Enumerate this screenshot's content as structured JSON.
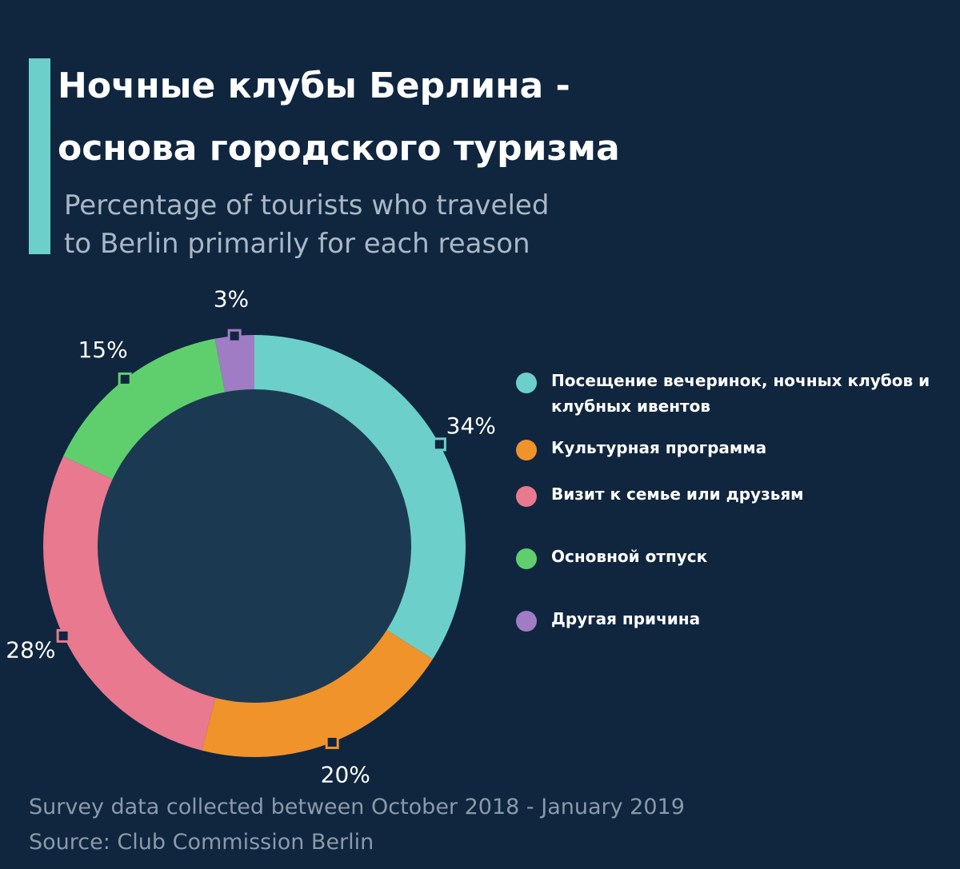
{
  "chart_data": {
    "type": "pie",
    "donut": true,
    "title": [
      "Ночные клубы Берлина -",
      "основа городского туризма"
    ],
    "subtitle": [
      "Percentage of tourists who traveled",
      "to Berlin primarily for each reason"
    ],
    "categories": [
      "Посещение вечеринок, ночных клубов и клубных ивентов",
      "Культурная программа",
      "Визит к семье или друзьям",
      "Основной отпуск",
      "Другая причина"
    ],
    "values": [
      34,
      20,
      28,
      15,
      3
    ],
    "value_labels": [
      "34%",
      "20%",
      "28%",
      "15%",
      "3%"
    ],
    "colors": [
      "#6dcfca",
      "#f0932b",
      "#e8798f",
      "#5fcf6e",
      "#a07cc5"
    ],
    "notes": [
      "Survey data collected between October 2018 - January 2019",
      "Source: Club Commission Berlin"
    ]
  }
}
